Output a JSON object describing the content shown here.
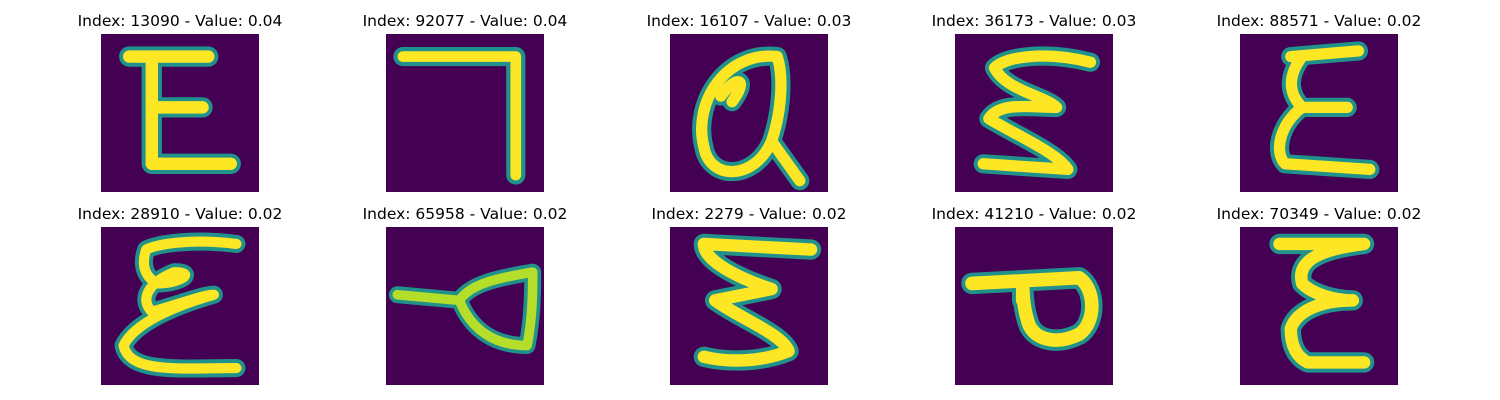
{
  "colormap": {
    "background": "#440154",
    "dark_edge": "#31688e",
    "mid_edge": "#21918c",
    "light_edge": "#5ec962",
    "highlight": "#b5de2b",
    "core": "#fde725"
  },
  "panels": [
    {
      "title": "Index: 13090 - Value: 0.04",
      "glyph": "E"
    },
    {
      "title": "Index: 92077 - Value: 0.04",
      "glyph": "seven-mirrored"
    },
    {
      "title": "Index: 16107 - Value: 0.03",
      "glyph": "alpha"
    },
    {
      "title": "Index: 36173 - Value: 0.03",
      "glyph": "three-mirrored"
    },
    {
      "title": "Index: 88571 - Value: 0.02",
      "glyph": "epsilon"
    },
    {
      "title": "Index: 28910 - Value: 0.02",
      "glyph": "curly-epsilon"
    },
    {
      "title": "Index: 65958 - Value: 0.02",
      "glyph": "flag-loop"
    },
    {
      "title": "Index: 2279 - Value: 0.02",
      "glyph": "three-mirrored"
    },
    {
      "title": "Index: 41210 - Value: 0.02",
      "glyph": "p-rotated"
    },
    {
      "title": "Index: 70349 - Value: 0.02",
      "glyph": "epsilon"
    }
  ]
}
